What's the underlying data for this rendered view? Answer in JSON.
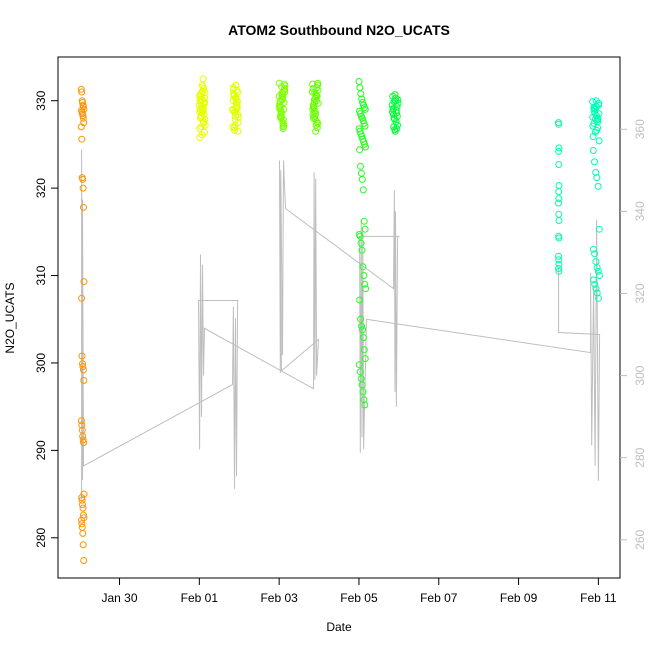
{
  "chart_data": {
    "type": "scatter",
    "title": "ATOM2 Southbound N2O_UCATS",
    "xlabel": "Date",
    "ylabel": "N2O_UCATS",
    "x_ticks": [
      "Jan 30",
      "Feb 01",
      "Feb 03",
      "Feb 05",
      "Feb 07",
      "Feb 09",
      "Feb 11"
    ],
    "x_tick_dates": [
      "01-30 00:00",
      "02-01 00:00",
      "02-03 00:00",
      "02-05 00:00",
      "02-07 00:00",
      "02-09 00:00",
      "02-11 00:00"
    ],
    "xlim": [
      "01-28 11:00",
      "02-11 13:00"
    ],
    "y_ticks": [
      280,
      290,
      300,
      310,
      320,
      330
    ],
    "ylim": [
      275.4,
      335.0
    ],
    "y2_ticks": [
      260,
      280,
      300,
      320,
      340,
      360
    ],
    "y2lim": [
      250.7,
      377.6
    ],
    "y2_color": "#bebebe",
    "grid": false,
    "marker": "open-circle",
    "flights": [
      {
        "start": "01-29 01:00",
        "end": "01-29 02:40",
        "color": "#ff9400",
        "values": [
          331.3,
          331.0,
          330.0,
          329.8,
          329.5,
          329.3,
          329.0,
          328.9,
          328.7,
          328.5,
          328.3,
          328.0,
          327.5,
          327.0,
          325.6,
          321.2,
          321.0,
          320.0,
          317.8,
          309.3,
          307.4,
          300.8,
          299.9,
          299.6,
          299.2,
          298.0,
          293.4,
          292.9,
          292.3,
          291.6,
          291.2,
          290.9,
          285.0,
          284.6,
          284.3,
          283.8,
          283.4,
          282.6,
          282.3,
          282.0,
          281.6,
          281.2,
          280.5,
          279.2,
          277.4
        ]
      },
      {
        "start": "02-01 00:00",
        "end": "02-01 03:30",
        "color": "#e6ff00",
        "values": [
          329.5,
          330.2,
          328.1,
          331.0,
          327.4,
          329.9,
          326.8,
          330.8,
          328.6,
          329.2,
          331.4,
          327.9,
          325.8,
          330.5,
          328.9,
          332.5,
          329.7,
          327.2,
          330.0,
          328.3,
          331.8,
          329.1,
          326.4,
          330.6,
          328.0,
          329.4,
          331.1,
          327.6,
          330.3,
          328.7,
          329.8,
          326.1,
          331.6,
          328.4,
          330.9,
          329.0,
          327.0,
          330.1,
          328.8,
          329.6
        ]
      },
      {
        "start": "02-01 20:00",
        "end": "02-01 23:30",
        "color": "#e0ff00",
        "values": [
          329.0,
          330.5,
          327.8,
          331.2,
          328.4,
          330.0,
          326.6,
          331.8,
          329.3,
          328.1,
          330.8,
          327.2,
          329.7,
          331.0,
          328.9,
          326.9,
          330.3,
          329.5,
          327.5,
          331.5,
          328.6,
          330.1,
          329.9,
          327.0,
          330.7,
          328.2,
          329.1,
          326.5,
          331.3,
          328.8,
          330.4,
          329.2
        ]
      },
      {
        "start": "02-03 00:00",
        "end": "02-03 03:30",
        "color": "#7fff00",
        "values": [
          330.5,
          328.2,
          331.6,
          327.5,
          329.8,
          332.0,
          328.9,
          330.2,
          327.0,
          331.2,
          329.4,
          328.0,
          330.9,
          326.8,
          331.9,
          329.1,
          328.5,
          330.6,
          327.8,
          331.4,
          329.6,
          328.3,
          330.1,
          327.3,
          331.0,
          329.9,
          328.7,
          330.8,
          327.1,
          331.7,
          329.3,
          328.1,
          330.4,
          329.0
        ]
      },
      {
        "start": "02-03 20:00",
        "end": "02-03 23:30",
        "color": "#66ff00",
        "values": [
          331.0,
          329.2,
          327.9,
          330.6,
          332.0,
          328.4,
          330.1,
          326.5,
          331.5,
          329.7,
          328.0,
          330.9,
          327.2,
          331.8,
          329.0,
          328.6,
          330.3,
          327.6,
          331.2,
          329.5,
          328.2,
          330.7,
          326.9,
          331.9,
          329.3,
          328.8,
          330.0,
          327.4,
          331.4,
          329.8,
          328.5,
          330.5
        ]
      },
      {
        "start": "02-05 00:00",
        "end": "02-05 04:00",
        "color": "#22ff22",
        "values": [
          332.2,
          331.5,
          330.8,
          330.2,
          329.8,
          329.5,
          329.2,
          329.0,
          328.8,
          328.5,
          328.2,
          328.0,
          327.7,
          327.4,
          327.1,
          326.8,
          326.5,
          326.2,
          325.9,
          325.6,
          325.3,
          325.0,
          324.7,
          324.4,
          322.5,
          321.7,
          321.0,
          319.8,
          316.2,
          315.3,
          314.7,
          314.5,
          313.7,
          312.9,
          311.0,
          310.0,
          309.0,
          308.5,
          307.2,
          305.0,
          304.2,
          303.8,
          302.9,
          301.5,
          300.5,
          299.8,
          299.0,
          298.2,
          297.5,
          296.7,
          295.8,
          295.2
        ]
      },
      {
        "start": "02-05 20:00",
        "end": "02-05 23:30",
        "color": "#00ff33",
        "values": [
          329.5,
          328.0,
          330.3,
          327.2,
          329.0,
          330.7,
          326.8,
          328.7,
          329.9,
          327.6,
          330.1,
          328.4,
          326.5,
          329.3,
          330.5,
          327.9,
          328.9,
          329.7,
          327.0,
          330.0,
          328.2,
          329.1,
          326.7,
          328.6
        ]
      },
      {
        "start": "02-10 00:00",
        "end": "02-10 00:20",
        "color": "#00ffaa",
        "values": [
          327.5,
          327.3,
          324.6,
          324.2,
          322.7,
          320.3,
          319.6,
          318.8,
          318.3,
          317.0,
          316.3,
          314.5,
          314.3,
          312.2,
          311.8,
          311.3,
          310.8,
          310.5
        ]
      },
      {
        "start": "02-10 20:30",
        "end": "02-11 00:40",
        "color": "#00ffb2",
        "values": [
          329.9,
          329.2,
          328.6,
          330.0,
          327.8,
          329.5,
          328.1,
          327.4,
          329.0,
          328.3,
          326.9,
          329.7,
          327.1,
          328.8,
          326.4,
          329.3,
          327.6,
          328.5,
          325.9,
          329.1,
          327.9,
          326.6,
          328.0,
          325.4,
          324.3,
          323.0,
          321.8,
          321.2,
          320.2,
          315.3,
          313.0,
          312.5,
          311.6,
          310.9,
          310.5,
          310.0,
          309.5,
          309.0,
          308.5,
          308.0,
          307.4
        ]
      }
    ],
    "line_series": {
      "axis": "right",
      "color": "#bebebe",
      "points": [
        [
          "01-29 01:10",
          269.8
        ],
        [
          "01-29 01:10",
          355.1
        ],
        [
          "01-29 01:45",
          274.6
        ],
        [
          "01-29 01:45",
          342.9
        ],
        [
          "01-29 02:20",
          278.0
        ],
        [
          "02-01 19:58",
          297.8
        ],
        [
          "02-01 20:30",
          316.8
        ],
        [
          "02-01 21:10",
          272.4
        ],
        [
          "02-01 21:45",
          314.0
        ],
        [
          "02-01 22:22",
          275.5
        ],
        [
          "02-01 23:00",
          318.3
        ],
        [
          "02-01 23:34",
          318.3
        ],
        [
          "01-31 23:30",
          318.3
        ],
        [
          "02-01 00:10",
          282.0
        ],
        [
          "02-01 00:43",
          329.5
        ],
        [
          "02-01 01:20",
          290.0
        ],
        [
          "02-01 01:55",
          327.0
        ],
        [
          "02-01 02:30",
          300.0
        ],
        [
          "02-01 03:07",
          311.5
        ],
        [
          "02-03 20:41",
          296.8
        ],
        [
          "02-03 21:00",
          349.5
        ],
        [
          "02-03 21:30",
          299.0
        ],
        [
          "02-03 22:00",
          348.0
        ],
        [
          "02-03 22:30",
          300.0
        ],
        [
          "02-03 23:41",
          308.8
        ],
        [
          "02-03 01:26",
          301.2
        ],
        [
          "02-03 00:14",
          352.4
        ],
        [
          "02-03 00:40",
          300.7
        ],
        [
          "02-03 01:00",
          350.0
        ],
        [
          "02-03 02:00",
          305.0
        ],
        [
          "02-03 02:38",
          352.4
        ],
        [
          "02-03 03:50",
          340.7
        ],
        [
          "02-05 20:48",
          321.2
        ],
        [
          "02-05 21:20",
          345.1
        ],
        [
          "02-05 21:40",
          296.0
        ],
        [
          "02-05 22:00",
          340.0
        ],
        [
          "02-05 22:30",
          292.4
        ],
        [
          "02-05 23:13",
          333.9
        ],
        [
          "02-06 00:26",
          333.9
        ],
        [
          "02-05 00:22",
          333.9
        ],
        [
          "02-05 00:50",
          281.2
        ],
        [
          "02-05 01:20",
          338.0
        ],
        [
          "02-05 01:50",
          285.0
        ],
        [
          "02-05 02:20",
          336.0
        ],
        [
          "02-05 02:46",
          282.0
        ],
        [
          "02-05 04:34",
          313.7
        ],
        [
          "02-10 19:19",
          305.6
        ],
        [
          "02-10 19:19",
          325.0
        ],
        [
          "02-10 20:00",
          283.0
        ],
        [
          "02-10 21:07",
          322.0
        ],
        [
          "02-10 22:00",
          278.0
        ],
        [
          "02-10 22:55",
          338.0
        ],
        [
          "02-11 00:00",
          274.4
        ],
        [
          "02-11 00:43",
          310.0
        ],
        [
          "02-10 00:04",
          310.5
        ],
        [
          "02-10 00:04",
          326.1
        ]
      ]
    }
  }
}
